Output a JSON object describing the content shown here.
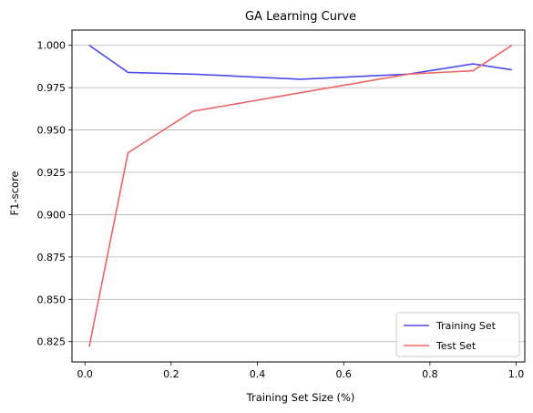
{
  "chart_data": {
    "type": "line",
    "title": "GA Learning Curve",
    "xlabel": "Training Set Size (%)",
    "ylabel": "F1-score",
    "xlim": [
      -0.03,
      1.02
    ],
    "ylim": [
      0.813,
      1.009
    ],
    "xticks": [
      0.0,
      0.2,
      0.4,
      0.6,
      0.8,
      1.0
    ],
    "xtick_labels": [
      "0.0",
      "0.2",
      "0.4",
      "0.6",
      "0.8",
      "1.0"
    ],
    "yticks": [
      0.825,
      0.85,
      0.875,
      0.9,
      0.925,
      0.95,
      0.975,
      1.0
    ],
    "ytick_labels": [
      "0.825",
      "0.850",
      "0.875",
      "0.900",
      "0.925",
      "0.950",
      "0.975",
      "1.000"
    ],
    "grid": "horizontal",
    "legend_position": "bottom-right",
    "series": [
      {
        "name": "Training Set",
        "color": "#4b4bf0",
        "x": [
          0.01,
          0.1,
          0.25,
          0.5,
          0.75,
          0.9,
          0.99
        ],
        "y": [
          1.0,
          0.984,
          0.983,
          0.98,
          0.983,
          0.989,
          0.9855
        ]
      },
      {
        "name": "Test Set",
        "color": "#f06464",
        "x": [
          0.01,
          0.1,
          0.25,
          0.5,
          0.75,
          0.9,
          0.99
        ],
        "y": [
          0.822,
          0.9365,
          0.961,
          0.972,
          0.983,
          0.985,
          1.0
        ]
      }
    ]
  }
}
